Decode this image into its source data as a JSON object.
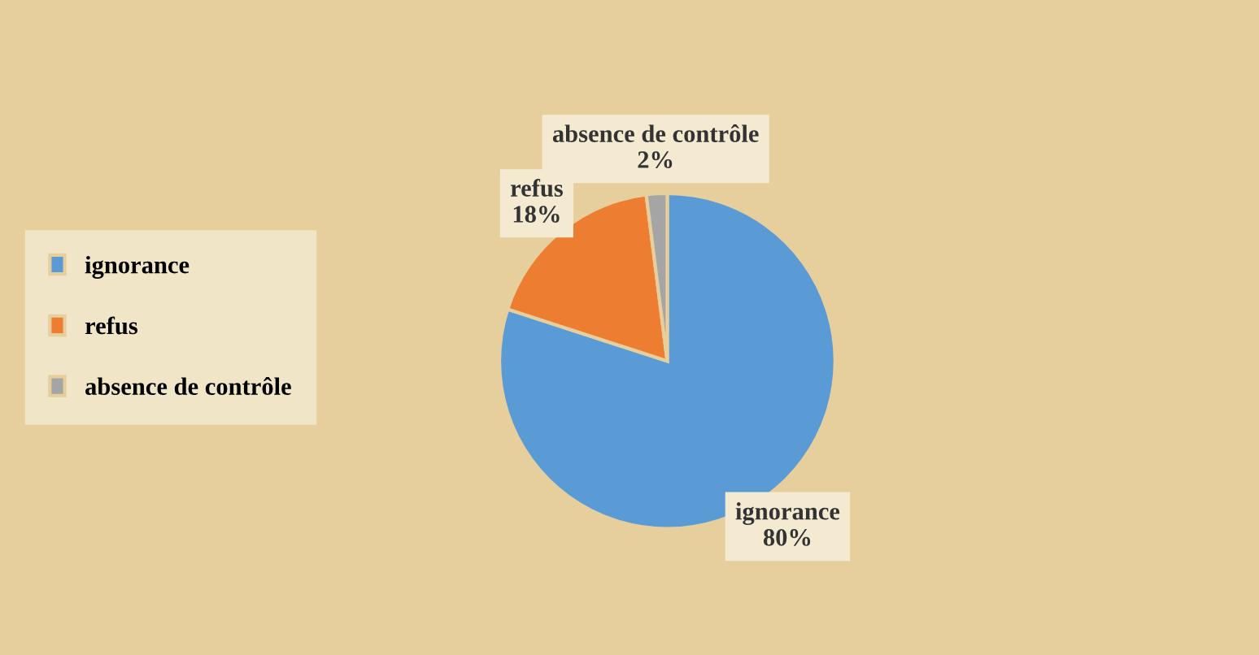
{
  "chart_data": {
    "type": "pie",
    "categories": [
      "ignorance",
      "refus",
      "absence de contrôle"
    ],
    "values": [
      80,
      18,
      2
    ],
    "value_labels": [
      "80%",
      "18%",
      "2%"
    ],
    "colors": [
      "#5b9bd5",
      "#ed7d31",
      "#a5a5a5"
    ],
    "legend": "left"
  }
}
